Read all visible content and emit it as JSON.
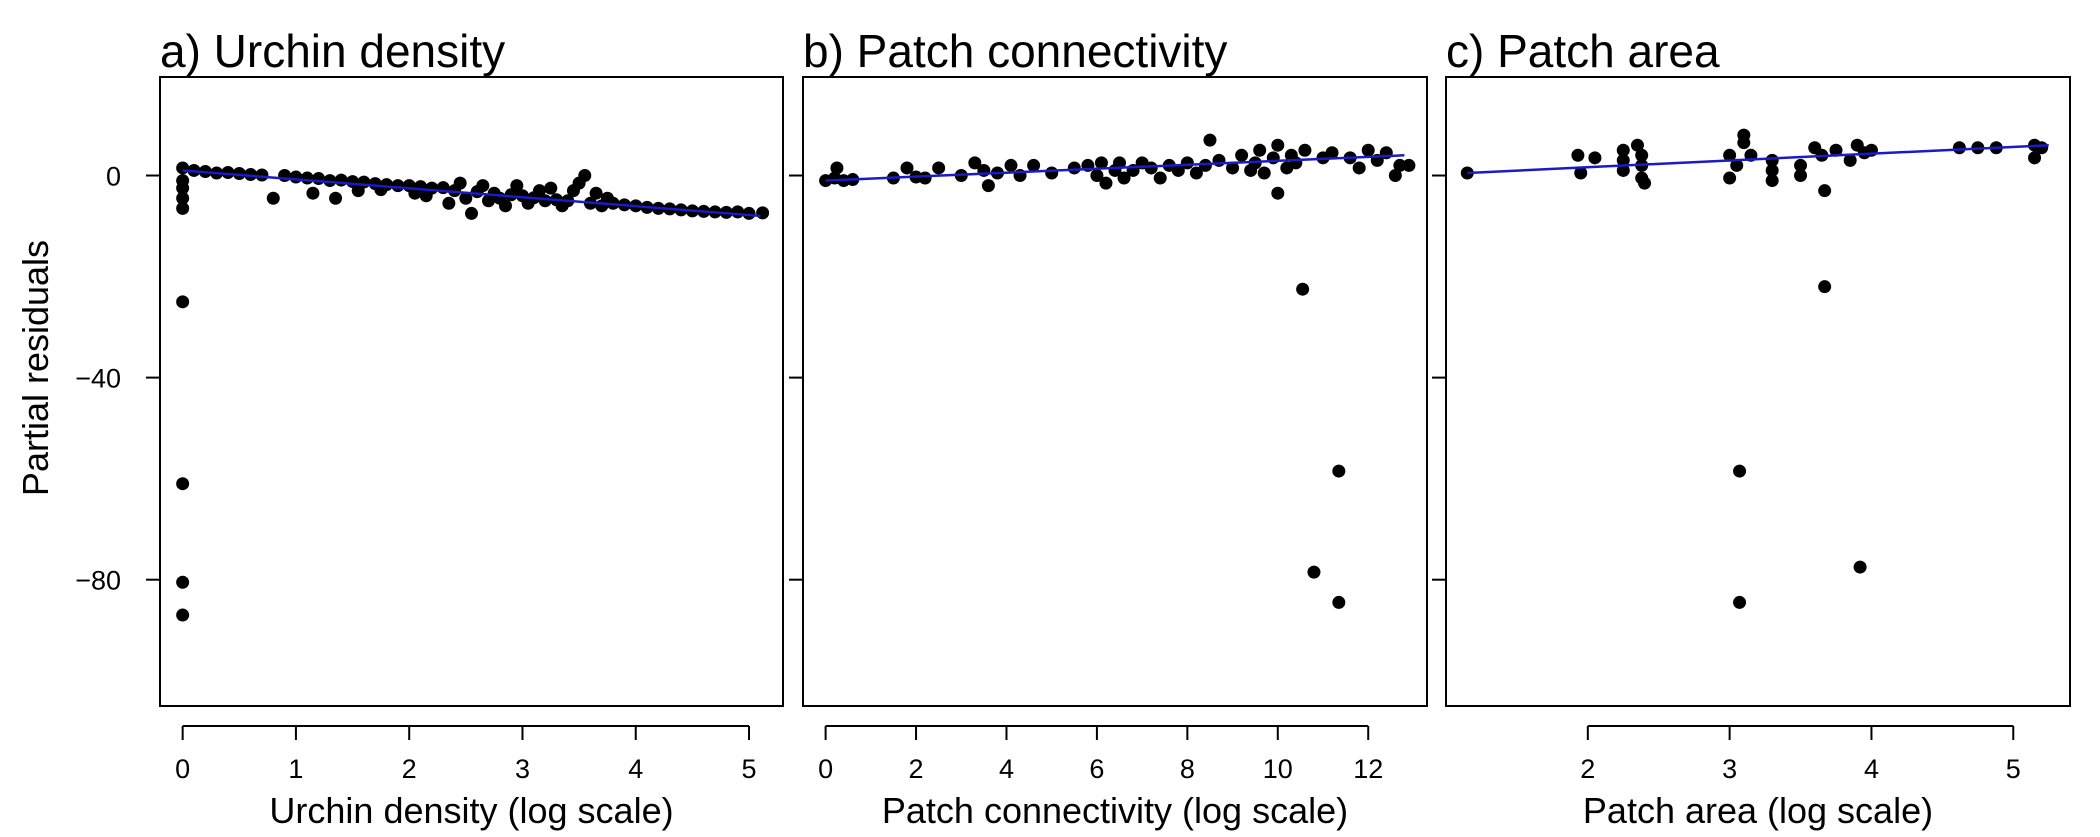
{
  "chart_data": {
    "type": "scatter",
    "ylabel": "Partial residuals",
    "ylim": [
      -105,
      19.5
    ],
    "yticks": [
      0,
      -40,
      -80
    ],
    "ytick_labels": [
      "0",
      "−40",
      "−80"
    ],
    "point_color": "#000000",
    "line_color": "#1a1ac8",
    "panels": [
      {
        "title": "a) Urchin density",
        "xlabel": "Urchin density (log scale)",
        "xlim": [
          -0.2,
          5.3
        ],
        "xticks": [
          0,
          1,
          2,
          3,
          4,
          5
        ],
        "xtick_labels": [
          "0",
          "1",
          "2",
          "3",
          "4",
          "5"
        ],
        "fit_line": {
          "x": [
            0,
            5.1
          ],
          "y": [
            1.0,
            -8.0
          ]
        },
        "points": [
          [
            0,
            1.5
          ],
          [
            0,
            -1
          ],
          [
            0,
            -2.5
          ],
          [
            0,
            -4.5
          ],
          [
            0,
            -6.5
          ],
          [
            0,
            -25
          ],
          [
            0,
            -61
          ],
          [
            0,
            -80.5
          ],
          [
            0,
            -87
          ],
          [
            0.1,
            1.0
          ],
          [
            0.2,
            0.8
          ],
          [
            0.3,
            0.5
          ],
          [
            0.4,
            0.6
          ],
          [
            0.5,
            0.4
          ],
          [
            0.6,
            0.2
          ],
          [
            0.7,
            0.1
          ],
          [
            0.8,
            -4.5
          ],
          [
            0.9,
            0.0
          ],
          [
            1.0,
            -0.3
          ],
          [
            1.1,
            -0.5
          ],
          [
            1.15,
            -3.5
          ],
          [
            1.2,
            -0.6
          ],
          [
            1.3,
            -1.0
          ],
          [
            1.35,
            -4.5
          ],
          [
            1.4,
            -0.9
          ],
          [
            1.5,
            -1.2
          ],
          [
            1.55,
            -3.0
          ],
          [
            1.6,
            -1.3
          ],
          [
            1.7,
            -1.6
          ],
          [
            1.75,
            -2.8
          ],
          [
            1.8,
            -1.8
          ],
          [
            1.9,
            -2.0
          ],
          [
            2.0,
            -2.0
          ],
          [
            2.05,
            -3.5
          ],
          [
            2.1,
            -2.2
          ],
          [
            2.15,
            -4.0
          ],
          [
            2.2,
            -2.5
          ],
          [
            2.3,
            -2.4
          ],
          [
            2.35,
            -5.5
          ],
          [
            2.4,
            -3.0
          ],
          [
            2.45,
            -1.5
          ],
          [
            2.5,
            -4.5
          ],
          [
            2.55,
            -7.5
          ],
          [
            2.6,
            -3.2
          ],
          [
            2.65,
            -2.0
          ],
          [
            2.7,
            -5.0
          ],
          [
            2.75,
            -3.5
          ],
          [
            2.8,
            -4.5
          ],
          [
            2.85,
            -6.0
          ],
          [
            2.9,
            -3.8
          ],
          [
            2.95,
            -2.0
          ],
          [
            3.0,
            -4.0
          ],
          [
            3.05,
            -5.5
          ],
          [
            3.1,
            -4.4
          ],
          [
            3.15,
            -3.0
          ],
          [
            3.2,
            -5.0
          ],
          [
            3.25,
            -2.5
          ],
          [
            3.3,
            -4.8
          ],
          [
            3.35,
            -6.0
          ],
          [
            3.4,
            -5.0
          ],
          [
            3.45,
            -3.0
          ],
          [
            3.5,
            -1.5
          ],
          [
            3.55,
            0.0
          ],
          [
            3.6,
            -5.5
          ],
          [
            3.65,
            -3.5
          ],
          [
            3.7,
            -6.0
          ],
          [
            3.75,
            -4.5
          ],
          [
            3.8,
            -5.5
          ],
          [
            3.9,
            -5.8
          ],
          [
            4.0,
            -6.0
          ],
          [
            4.1,
            -6.3
          ],
          [
            4.2,
            -6.5
          ],
          [
            4.3,
            -6.6
          ],
          [
            4.4,
            -6.8
          ],
          [
            4.5,
            -7.0
          ],
          [
            4.6,
            -7.1
          ],
          [
            4.7,
            -7.2
          ],
          [
            4.8,
            -7.3
          ],
          [
            4.9,
            -7.2
          ],
          [
            5.0,
            -7.5
          ],
          [
            5.12,
            -7.4
          ]
        ]
      },
      {
        "title": "b) Patch connectivity",
        "xlabel": "Patch connectivity (log scale)",
        "xlim": [
          -0.5,
          13.3
        ],
        "xticks": [
          0,
          2,
          4,
          6,
          8,
          10,
          12
        ],
        "xtick_labels": [
          "0",
          "2",
          "4",
          "6",
          "8",
          "10",
          "12"
        ],
        "fit_line": {
          "x": [
            0,
            12.8
          ],
          "y": [
            -1.0,
            4.0
          ]
        },
        "points": [
          [
            0,
            -1.0
          ],
          [
            0.2,
            -0.5
          ],
          [
            0.25,
            1.5
          ],
          [
            0.4,
            -1.0
          ],
          [
            0.6,
            -0.8
          ],
          [
            1.5,
            -0.5
          ],
          [
            1.8,
            1.5
          ],
          [
            2.0,
            -0.3
          ],
          [
            2.2,
            -0.5
          ],
          [
            2.5,
            1.5
          ],
          [
            3.0,
            0.0
          ],
          [
            3.3,
            2.5
          ],
          [
            3.5,
            1.0
          ],
          [
            3.6,
            -2.0
          ],
          [
            3.8,
            0.5
          ],
          [
            4.1,
            2.0
          ],
          [
            4.3,
            0.0
          ],
          [
            4.6,
            2.0
          ],
          [
            5.0,
            0.5
          ],
          [
            5.5,
            1.5
          ],
          [
            5.8,
            2.0
          ],
          [
            6.0,
            0.0
          ],
          [
            6.1,
            2.5
          ],
          [
            6.2,
            -1.5
          ],
          [
            6.4,
            1.0
          ],
          [
            6.5,
            2.5
          ],
          [
            6.6,
            -0.5
          ],
          [
            6.8,
            1.0
          ],
          [
            7.0,
            2.5
          ],
          [
            7.2,
            1.5
          ],
          [
            7.4,
            -0.5
          ],
          [
            7.6,
            2.0
          ],
          [
            7.8,
            1.0
          ],
          [
            8.0,
            2.5
          ],
          [
            8.2,
            0.5
          ],
          [
            8.4,
            2.0
          ],
          [
            8.5,
            7.0
          ],
          [
            8.7,
            3.0
          ],
          [
            9.0,
            1.5
          ],
          [
            9.2,
            4.0
          ],
          [
            9.4,
            1.0
          ],
          [
            9.5,
            2.5
          ],
          [
            9.6,
            5.0
          ],
          [
            9.7,
            0.5
          ],
          [
            9.9,
            3.5
          ],
          [
            10.0,
            -3.5
          ],
          [
            10.0,
            6.0
          ],
          [
            10.2,
            1.5
          ],
          [
            10.3,
            4.0
          ],
          [
            10.4,
            2.5
          ],
          [
            10.55,
            -22.5
          ],
          [
            10.6,
            5.0
          ],
          [
            10.8,
            -78.5
          ],
          [
            11.0,
            3.5
          ],
          [
            11.2,
            4.5
          ],
          [
            11.35,
            -58.5
          ],
          [
            11.35,
            -84.5
          ],
          [
            11.6,
            3.5
          ],
          [
            11.8,
            1.5
          ],
          [
            12.0,
            5.0
          ],
          [
            12.2,
            3.0
          ],
          [
            12.4,
            4.5
          ],
          [
            12.6,
            0.0
          ],
          [
            12.7,
            2.0
          ],
          [
            12.9,
            2.0
          ]
        ]
      },
      {
        "title": "c) Patch area",
        "xlabel": "Patch area (log scale)",
        "xlim": [
          1.0,
          5.4
        ],
        "xticks": [
          2,
          3,
          4,
          5
        ],
        "xtick_labels": [
          "2",
          "3",
          "4",
          "5"
        ],
        "fit_line": {
          "x": [
            1.15,
            5.25
          ],
          "y": [
            0.5,
            6.0
          ]
        },
        "points": [
          [
            1.15,
            0.5
          ],
          [
            1.93,
            4.0
          ],
          [
            1.95,
            0.5
          ],
          [
            2.05,
            3.5
          ],
          [
            2.25,
            5.0
          ],
          [
            2.25,
            3.0
          ],
          [
            2.25,
            1.0
          ],
          [
            2.35,
            6.0
          ],
          [
            2.38,
            4.0
          ],
          [
            2.38,
            2.0
          ],
          [
            2.38,
            -0.5
          ],
          [
            2.4,
            -1.5
          ],
          [
            3.0,
            4.0
          ],
          [
            3.0,
            -0.5
          ],
          [
            3.05,
            2.0
          ],
          [
            3.07,
            -58.5
          ],
          [
            3.07,
            -84.5
          ],
          [
            3.1,
            6.5
          ],
          [
            3.1,
            8.0
          ],
          [
            3.15,
            4.0
          ],
          [
            3.3,
            3.0
          ],
          [
            3.3,
            1.0
          ],
          [
            3.3,
            -1.0
          ],
          [
            3.5,
            2.0
          ],
          [
            3.5,
            0.0
          ],
          [
            3.6,
            5.5
          ],
          [
            3.65,
            4.0
          ],
          [
            3.67,
            -22.0
          ],
          [
            3.67,
            -3.0
          ],
          [
            3.75,
            5.0
          ],
          [
            3.85,
            3.0
          ],
          [
            3.9,
            6.0
          ],
          [
            3.92,
            -77.5
          ],
          [
            3.95,
            4.5
          ],
          [
            4.0,
            5.0
          ],
          [
            4.62,
            5.5
          ],
          [
            4.75,
            5.5
          ],
          [
            4.88,
            5.5
          ],
          [
            5.15,
            6.0
          ],
          [
            5.15,
            3.5
          ],
          [
            5.2,
            5.5
          ]
        ]
      }
    ]
  }
}
